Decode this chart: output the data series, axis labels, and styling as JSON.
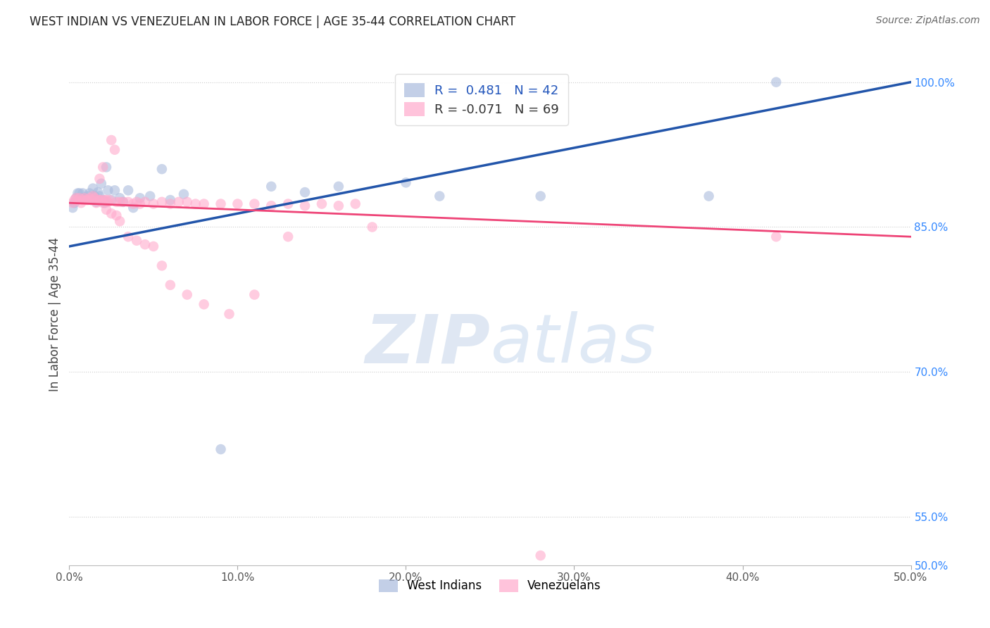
{
  "title": "WEST INDIAN VS VENEZUELAN IN LABOR FORCE | AGE 35-44 CORRELATION CHART",
  "source": "Source: ZipAtlas.com",
  "ylabel": "In Labor Force | Age 35-44",
  "xlim": [
    0.0,
    0.5
  ],
  "ylim": [
    0.5,
    1.02
  ],
  "blue_R": 0.481,
  "blue_N": 42,
  "pink_R": -0.071,
  "pink_N": 69,
  "blue_color": "#aabbdd",
  "pink_color": "#ffaacc",
  "blue_line_color": "#2255aa",
  "pink_line_color": "#ee4477",
  "watermark_zip_color": "#ccd8ee",
  "watermark_atlas_color": "#b8ccee",
  "west_indian_x": [
    0.002,
    0.003,
    0.004,
    0.005,
    0.006,
    0.007,
    0.008,
    0.009,
    0.01,
    0.011,
    0.012,
    0.013,
    0.014,
    0.015,
    0.016,
    0.017,
    0.018,
    0.019,
    0.02,
    0.021,
    0.022,
    0.023,
    0.025,
    0.027,
    0.03,
    0.032,
    0.035,
    0.038,
    0.042,
    0.048,
    0.055,
    0.06,
    0.068,
    0.09,
    0.12,
    0.14,
    0.16,
    0.2,
    0.22,
    0.28,
    0.38,
    0.42
  ],
  "west_indian_y": [
    0.87,
    0.875,
    0.88,
    0.885,
    0.885,
    0.88,
    0.885,
    0.88,
    0.88,
    0.882,
    0.885,
    0.878,
    0.89,
    0.882,
    0.876,
    0.886,
    0.882,
    0.895,
    0.878,
    0.875,
    0.912,
    0.888,
    0.878,
    0.888,
    0.88,
    0.876,
    0.888,
    0.87,
    0.88,
    0.882,
    0.91,
    0.878,
    0.884,
    0.62,
    0.892,
    0.886,
    0.892,
    0.896,
    0.882,
    0.882,
    0.882,
    1.0
  ],
  "venezuelan_x": [
    0.002,
    0.003,
    0.004,
    0.005,
    0.006,
    0.007,
    0.008,
    0.009,
    0.01,
    0.011,
    0.012,
    0.013,
    0.014,
    0.015,
    0.016,
    0.017,
    0.018,
    0.019,
    0.02,
    0.021,
    0.022,
    0.023,
    0.024,
    0.025,
    0.027,
    0.028,
    0.03,
    0.032,
    0.035,
    0.038,
    0.04,
    0.042,
    0.045,
    0.05,
    0.055,
    0.06,
    0.065,
    0.07,
    0.075,
    0.08,
    0.09,
    0.1,
    0.11,
    0.12,
    0.13,
    0.14,
    0.15,
    0.16,
    0.17,
    0.18,
    0.018,
    0.02,
    0.022,
    0.025,
    0.028,
    0.03,
    0.035,
    0.04,
    0.045,
    0.05,
    0.055,
    0.06,
    0.07,
    0.08,
    0.095,
    0.11,
    0.13,
    0.28,
    0.42
  ],
  "venezuelan_y": [
    0.875,
    0.878,
    0.88,
    0.878,
    0.88,
    0.875,
    0.878,
    0.88,
    0.878,
    0.878,
    0.88,
    0.878,
    0.882,
    0.88,
    0.875,
    0.878,
    0.878,
    0.878,
    0.875,
    0.878,
    0.878,
    0.876,
    0.878,
    0.94,
    0.93,
    0.876,
    0.876,
    0.876,
    0.876,
    0.874,
    0.876,
    0.874,
    0.876,
    0.874,
    0.876,
    0.874,
    0.876,
    0.876,
    0.874,
    0.874,
    0.874,
    0.874,
    0.874,
    0.872,
    0.874,
    0.872,
    0.874,
    0.872,
    0.874,
    0.85,
    0.9,
    0.912,
    0.868,
    0.864,
    0.862,
    0.856,
    0.84,
    0.836,
    0.832,
    0.83,
    0.81,
    0.79,
    0.78,
    0.77,
    0.76,
    0.78,
    0.84,
    0.51,
    0.84
  ]
}
